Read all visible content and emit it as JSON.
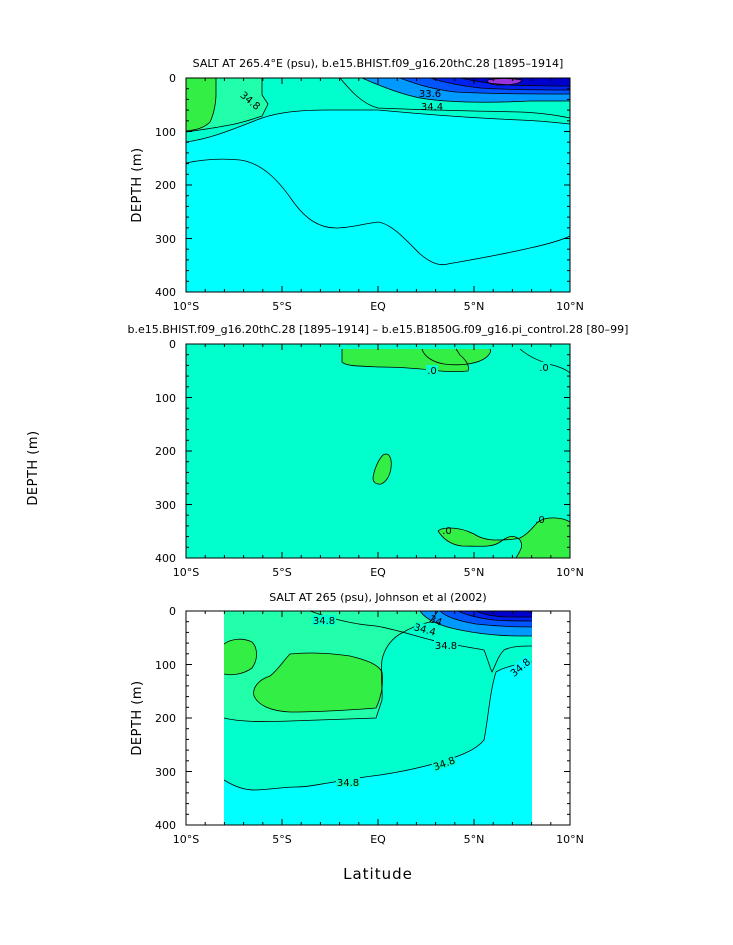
{
  "chart_data": [
    {
      "type": "heatmap",
      "title": "SALT AT 265.4°E (psu), b.e15.BHIST.f09_g16.20thC.28 [1895–1914]",
      "ylabel": "DEPTH (m)",
      "xlabel": "",
      "x_ticks": [
        "10°S",
        "5°S",
        "EQ",
        "5°N",
        "10°N"
      ],
      "y_ticks": [
        "0",
        "100",
        "200",
        "300",
        "400"
      ],
      "xlim": [
        -10,
        10
      ],
      "ylim": [
        400,
        0
      ],
      "contour_labels": [
        "34.8",
        "33.6",
        "34.4"
      ],
      "colors": {
        "background": "#00ffff",
        "green": "#33ee44",
        "sea_green": "#22ffaa",
        "aqua_green": "#00ffcc",
        "blue_light": "#0099ff",
        "blue": "#0055ff",
        "blue_dark": "#0022ee",
        "navy": "#0000cc",
        "violet": "#9933dd"
      }
    },
    {
      "type": "heatmap",
      "title": "b.e15.BHIST.f09_g16.20thC.28 [1895–1914] – b.e15.B1850G.f09_g16.pi_control.28 [80–99]",
      "ylabel": "DEPTH (m)",
      "xlabel": "",
      "x_ticks": [
        "10°S",
        "5°S",
        "EQ",
        "5°N",
        "10°N"
      ],
      "y_ticks": [
        "0",
        "100",
        "200",
        "300",
        "400"
      ],
      "xlim": [
        -10,
        10
      ],
      "ylim": [
        400,
        0
      ],
      "contour_labels": [
        ".0",
        ".0",
        ".0",
        ".0"
      ],
      "colors": {
        "background": "#00ffcc",
        "green": "#33ee44"
      }
    },
    {
      "type": "heatmap",
      "title": "SALT AT 265 (psu), Johnson et al (2002)",
      "ylabel": "DEPTH (m)",
      "xlabel": "Latitude",
      "x_ticks": [
        "10°S",
        "5°S",
        "EQ",
        "5°N",
        "10°N"
      ],
      "y_ticks": [
        "0",
        "100",
        "200",
        "300",
        "400"
      ],
      "xlim": [
        -10,
        10
      ],
      "ylim": [
        400,
        0
      ],
      "data_xrange": [
        -8,
        8
      ],
      "contour_labels": [
        "34.8",
        "34.4",
        "34",
        "34.8",
        "34.8",
        "34.8",
        "34.8"
      ],
      "colors": {
        "background": "#00ffff",
        "green": "#33ee44",
        "sea_green": "#22ffaa",
        "aqua_green": "#00ffcc",
        "blue_light": "#0099ff",
        "blue": "#0055ff",
        "blue_dark": "#0022ee",
        "navy": "#0000cc"
      }
    }
  ]
}
